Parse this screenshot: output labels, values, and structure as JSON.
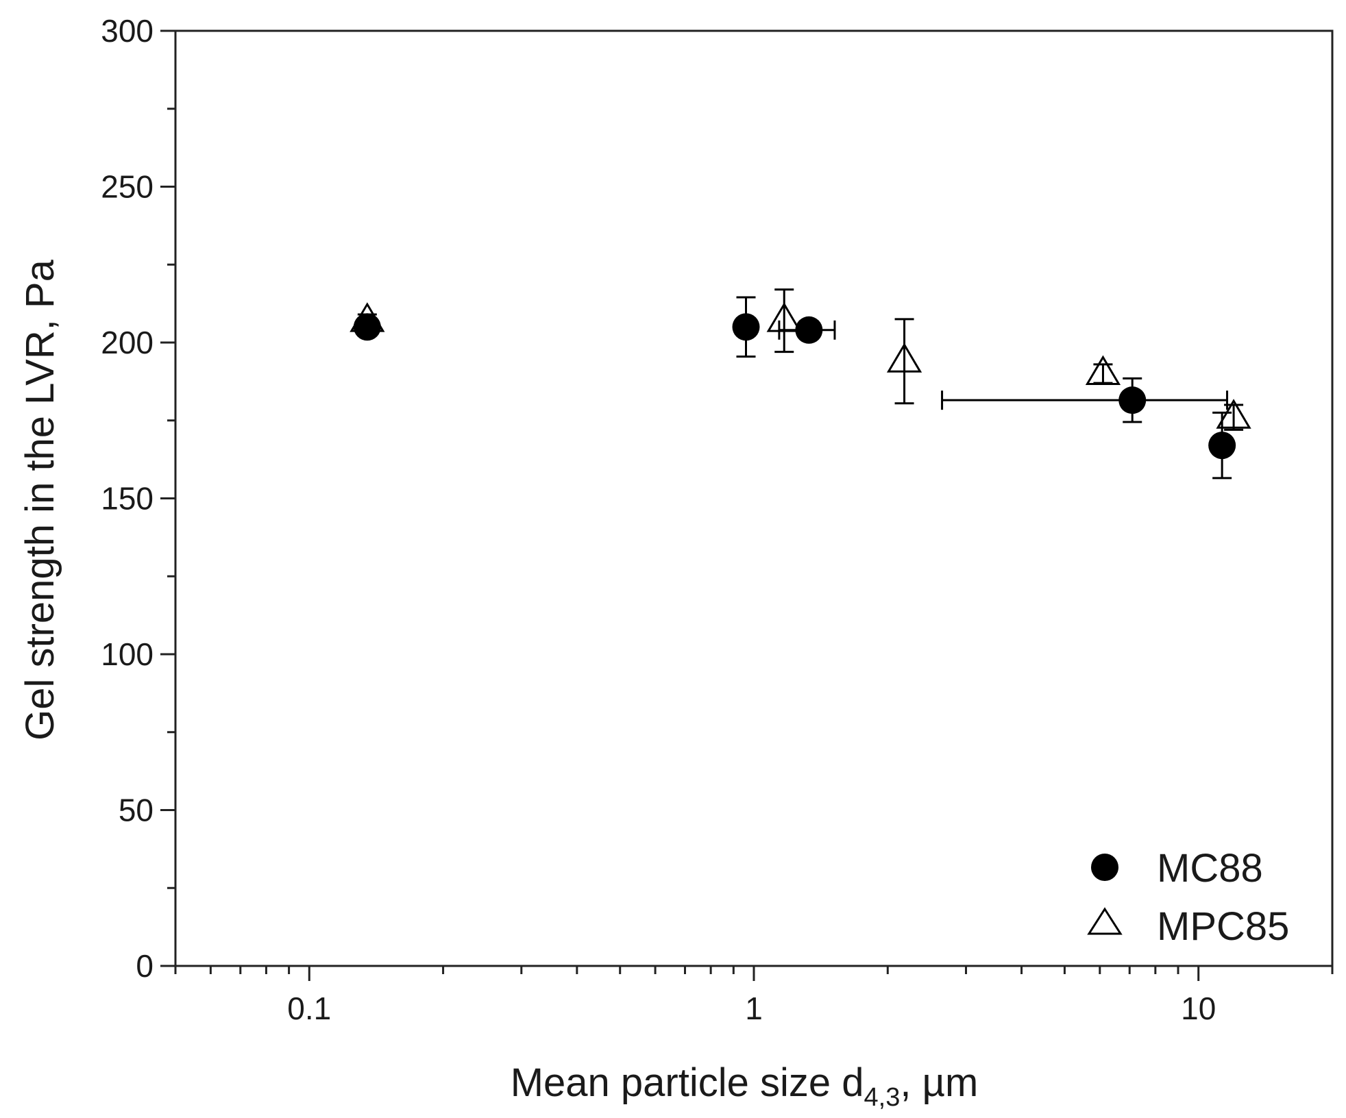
{
  "chart_data": {
    "type": "scatter",
    "x_scale": "log",
    "xlim": [
      0.05,
      20
    ],
    "ylim": [
      0,
      300
    ],
    "grid": false,
    "legend_position": "bottom-right",
    "xlabel": {
      "text": "Mean particle size d",
      "subscript": "4,3",
      "suffix": ", µm"
    },
    "ylabel": "Gel strength in the LVR, Pa",
    "x_ticks": [
      {
        "value": 0.1,
        "label": "0.1"
      },
      {
        "value": 1,
        "label": "1"
      },
      {
        "value": 10,
        "label": "10"
      }
    ],
    "y_ticks": [
      {
        "value": 0,
        "label": "0"
      },
      {
        "value": 50,
        "label": "50"
      },
      {
        "value": 100,
        "label": "100"
      },
      {
        "value": 150,
        "label": "150"
      },
      {
        "value": 200,
        "label": "200"
      },
      {
        "value": 250,
        "label": "250"
      },
      {
        "value": 300,
        "label": "300"
      }
    ],
    "series": [
      {
        "name": "MC88",
        "marker": "filled-circle",
        "color": "#000000",
        "points": [
          {
            "x": 0.135,
            "y": 205,
            "yerr": 2,
            "xerr": null
          },
          {
            "x": 0.96,
            "y": 205,
            "yerr": 9.5,
            "xerr": null
          },
          {
            "x": 1.33,
            "y": 204,
            "yerr": 2,
            "xerr": [
              1.14,
              1.52
            ]
          },
          {
            "x": 7.1,
            "y": 181.5,
            "yerr": 7,
            "xerr": [
              2.65,
              11.6
            ]
          },
          {
            "x": 11.3,
            "y": 167,
            "yerr": 10.5,
            "xerr": null
          }
        ]
      },
      {
        "name": "MPC85",
        "marker": "open-triangle",
        "color": "#000000",
        "points": [
          {
            "x": 0.135,
            "y": 207,
            "yerr": 2,
            "xerr": null
          },
          {
            "x": 1.17,
            "y": 207,
            "yerr": 10,
            "xerr": null
          },
          {
            "x": 2.18,
            "y": 194,
            "yerr": 13.5,
            "xerr": null
          },
          {
            "x": 6.1,
            "y": 190,
            "yerr": 3,
            "xerr": null
          },
          {
            "x": 12.0,
            "y": 176,
            "yerr": 4,
            "xerr": null
          }
        ]
      }
    ]
  }
}
